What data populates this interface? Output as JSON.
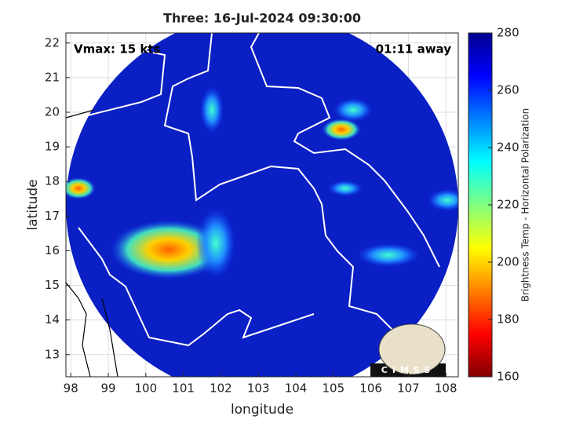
{
  "chart_data": {
    "type": "map",
    "title": "Three: 16-Jul-2024 09:30:00",
    "annotations": [
      "Vmax: 15 kts",
      "01:11 away"
    ],
    "x_label": "longitude",
    "y_label": "latitude",
    "xlim": [
      97.87,
      108.33
    ],
    "ylim": [
      12.36,
      22.29
    ],
    "xticks": [
      98,
      99,
      100,
      101,
      102,
      103,
      104,
      105,
      106,
      107,
      108
    ],
    "yticks": [
      13,
      14,
      15,
      16,
      17,
      18,
      19,
      20,
      21,
      22
    ],
    "grid": true,
    "colorbar": {
      "label": "Brightness Temp - Horizontal Polarization",
      "lim": [
        160,
        280
      ],
      "ticks": [
        160,
        180,
        200,
        220,
        240,
        260,
        280
      ],
      "colors": [
        "#800000",
        "#ff0000",
        "#ff8000",
        "#ffff00",
        "#80ff80",
        "#00ffff",
        "#0080ff",
        "#0000ff",
        "#00008f"
      ]
    },
    "logo": "CIMSS"
  }
}
